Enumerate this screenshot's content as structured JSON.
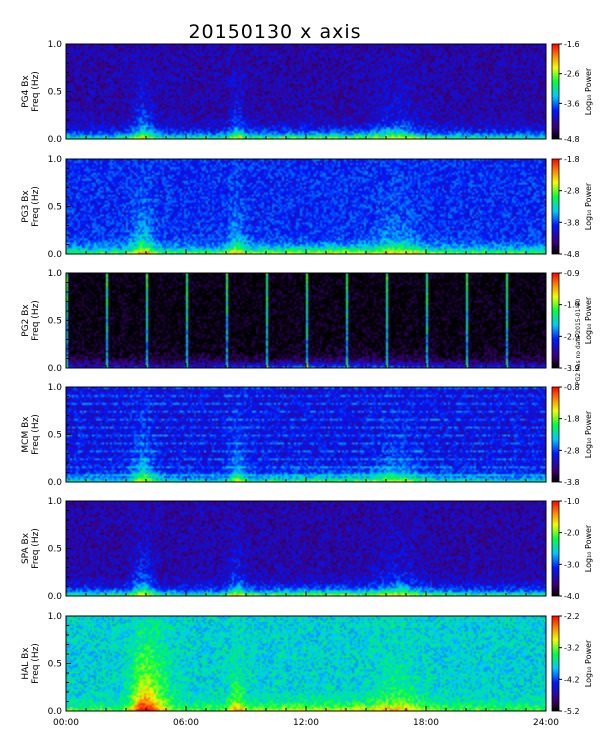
{
  "chart_data": {
    "type": "heatmap",
    "title": "20150130 x axis",
    "x_axis": {
      "range_hours": [
        0,
        24
      ],
      "ticks": [
        0,
        6,
        12,
        18,
        24
      ],
      "tick_labels": [
        "00:00",
        "06:00",
        "12:00",
        "18:00",
        "24:00"
      ]
    },
    "colorbar_label": "Log₁₀ Power",
    "side_note": "PG2 has no data 2015-01-30",
    "panels": [
      {
        "station": "PG4 Bx",
        "ylabel": "Freq (Hz)",
        "ylim": [
          0.0,
          1.0
        ],
        "yticks": [
          "0.0",
          "0.5",
          "1.0"
        ],
        "cbar_range": [
          -4.8,
          -1.6
        ],
        "cbar_ticks": [
          "-1.6",
          "-2.6",
          "-3.6",
          "-4.8"
        ],
        "background_level": 0.18,
        "low_freq_level": 0.7
      },
      {
        "station": "PG3 Bx",
        "ylabel": "Freq (Hz)",
        "ylim": [
          0.0,
          1.0
        ],
        "yticks": [
          "0.0",
          "0.5",
          "1.0"
        ],
        "cbar_range": [
          -4.8,
          -1.8
        ],
        "cbar_ticks": [
          "-1.8",
          "-2.8",
          "-3.8",
          "-4.8"
        ],
        "background_level": 0.3,
        "low_freq_level": 0.75
      },
      {
        "station": "PG2 Bx",
        "ylabel": "Freq (Hz)",
        "ylim": [
          0.0,
          1.0
        ],
        "yticks": [
          "0.0",
          "0.5",
          "1.0"
        ],
        "cbar_range": [
          -3.9,
          -0.9
        ],
        "cbar_ticks": [
          "-0.9",
          "-1.9",
          "-2.9",
          "-3.9"
        ],
        "background_level": 0.0,
        "low_freq_level": 0.35
      },
      {
        "station": "MCM Bx",
        "ylabel": "Freq (Hz)",
        "ylim": [
          0.0,
          1.0
        ],
        "yticks": [
          "0.0",
          "0.5",
          "1.0"
        ],
        "cbar_range": [
          -3.8,
          -0.8
        ],
        "cbar_ticks": [
          "-0.8",
          "-1.8",
          "-2.8",
          "-3.8"
        ],
        "background_level": 0.25,
        "low_freq_level": 0.6
      },
      {
        "station": "SPA Bx",
        "ylabel": "Freq (Hz)",
        "ylim": [
          0.0,
          1.0
        ],
        "yticks": [
          "0.0",
          "0.5",
          "1.0"
        ],
        "cbar_range": [
          -4.0,
          -1.0
        ],
        "cbar_ticks": [
          "-1.0",
          "-2.0",
          "-3.0",
          "-4.0"
        ],
        "background_level": 0.18,
        "low_freq_level": 0.72
      },
      {
        "station": "HAL Bx",
        "ylabel": "Freq (Hz)",
        "ylim": [
          0.0,
          1.0
        ],
        "yticks": [
          "0.0",
          "0.5",
          "1.0"
        ],
        "cbar_range": [
          -5.2,
          -2.2
        ],
        "cbar_ticks": [
          "-2.2",
          "-3.2",
          "-4.2",
          "-5.2"
        ],
        "background_level": 0.48,
        "low_freq_level": 0.7
      }
    ]
  }
}
